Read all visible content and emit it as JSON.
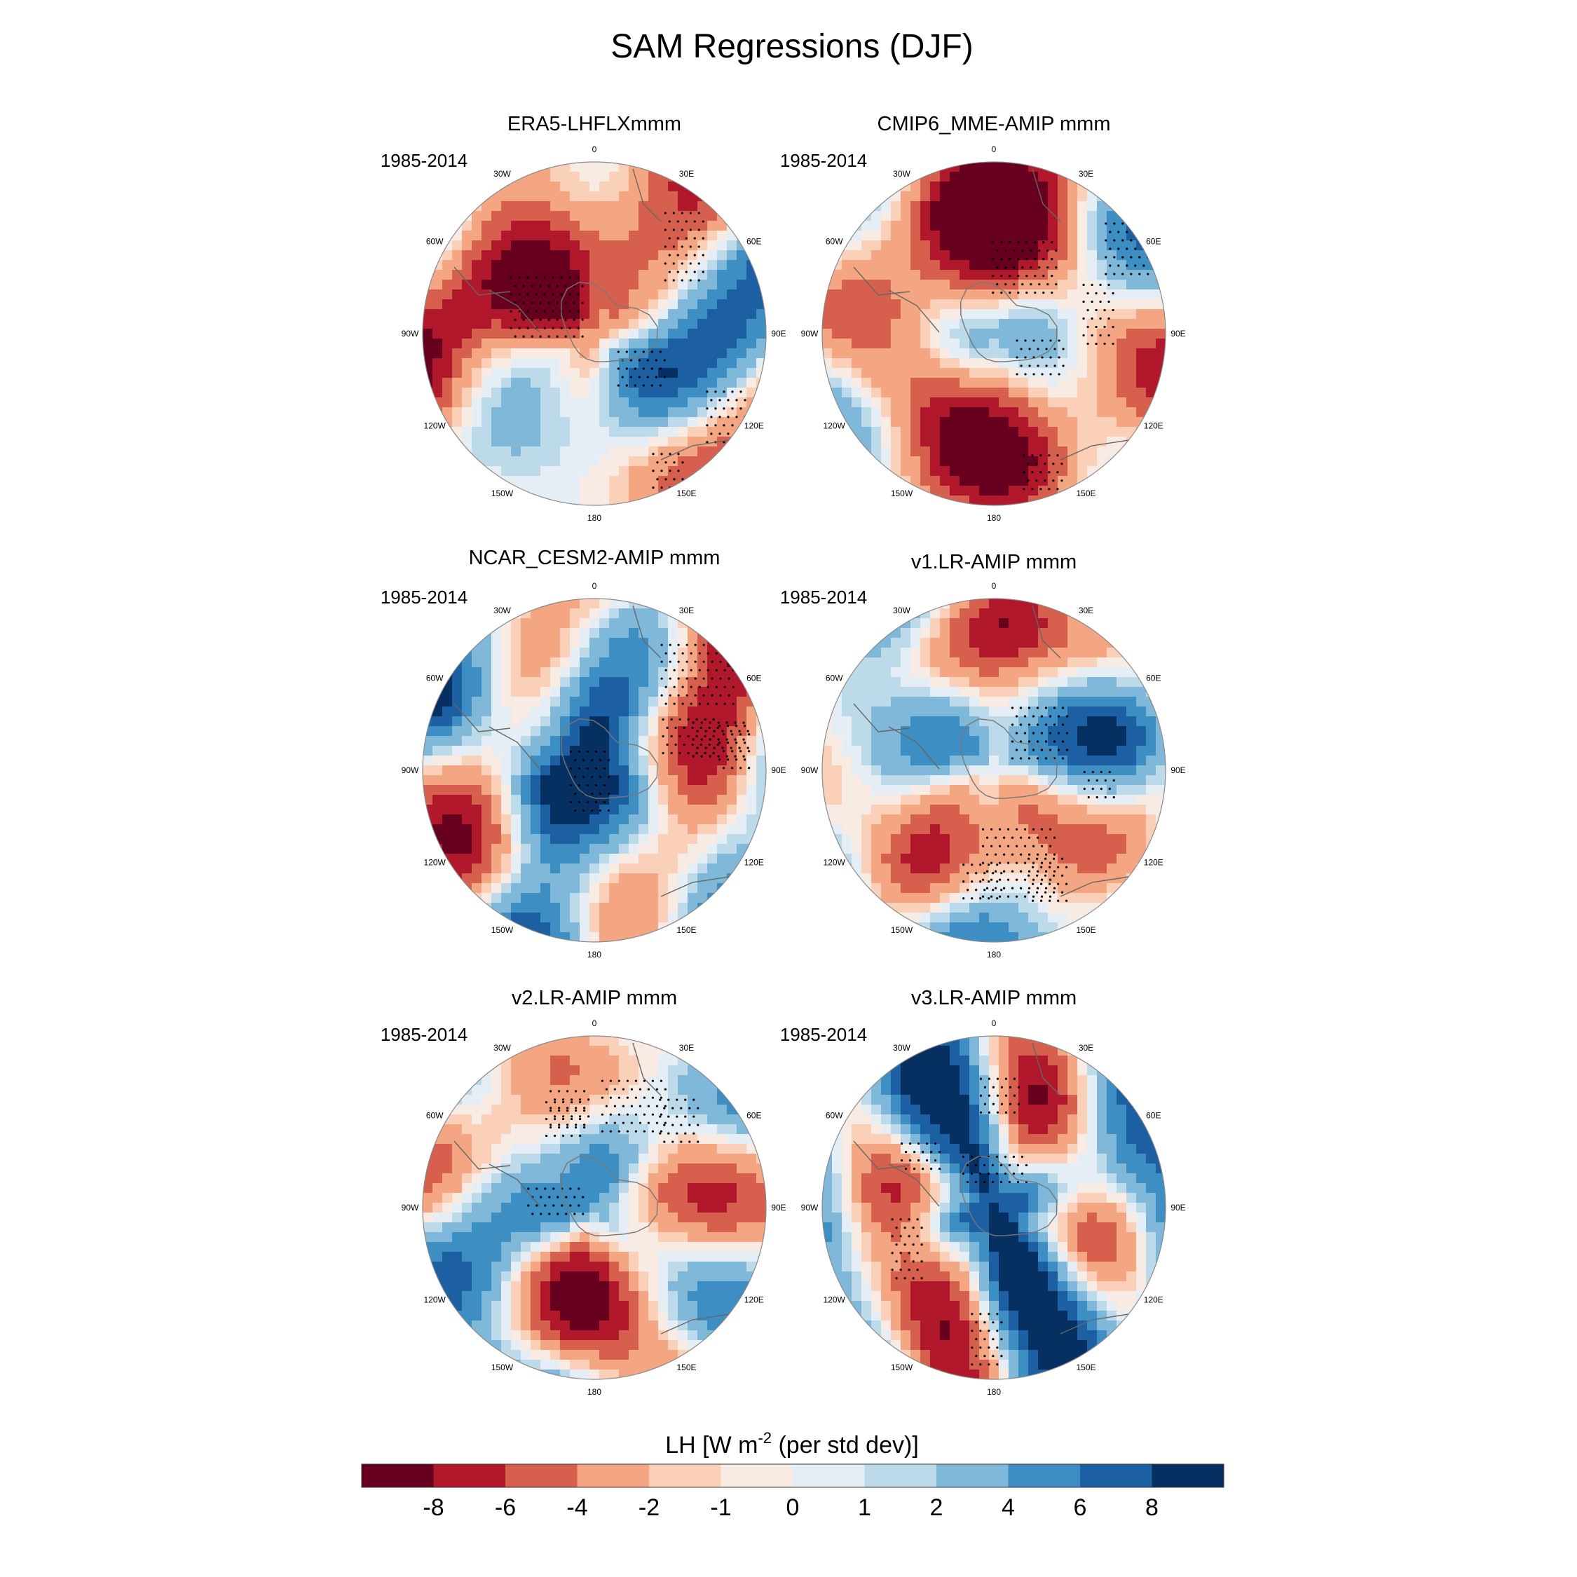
{
  "figure": {
    "title": "SAM Regressions (DJF)"
  },
  "panels": [
    {
      "id": "era5",
      "title": "ERA5-LHFLXmmm",
      "period": "1985-2014",
      "seed": 11
    },
    {
      "id": "cmip6",
      "title": "CMIP6_MME-AMIP  mmm",
      "period": "1985-2014",
      "seed": 23
    },
    {
      "id": "cesm2",
      "title": "NCAR_CESM2-AMIP  mmm",
      "period": "1985-2014",
      "seed": 37
    },
    {
      "id": "v1",
      "title": "v1.LR-AMIP  mmm",
      "period": "1985-2014",
      "seed": 41
    },
    {
      "id": "v2",
      "title": "v2.LR-AMIP  mmm",
      "period": "1985-2014",
      "seed": 53
    },
    {
      "id": "v3",
      "title": "v3.LR-AMIP  mmm",
      "period": "1985-2014",
      "seed": 67
    }
  ],
  "longitude_labels": [
    "0",
    "30E",
    "60E",
    "90E",
    "120E",
    "150E",
    "180",
    "150W",
    "120W",
    "90W",
    "60W",
    "30W"
  ],
  "colorbar": {
    "title_prefix": "LH [W m",
    "title_exponent": "-2",
    "title_suffix": " (per std dev)]",
    "tick_labels": [
      "-8",
      "-6",
      "-4",
      "-2",
      "-1",
      "0",
      "1",
      "2",
      "4",
      "6",
      "8"
    ],
    "levels": [
      -8,
      -6,
      -4,
      -2,
      -1,
      0,
      1,
      2,
      4,
      6,
      8
    ],
    "colors": [
      "#67001f",
      "#b2182b",
      "#d6604d",
      "#f4a582",
      "#fbd0b9",
      "#f7ebe4",
      "#e5eef4",
      "#bcdaea",
      "#7fb8d8",
      "#3d8ec3",
      "#1c5fa3",
      "#053061"
    ]
  },
  "chart_data": {
    "type": "map",
    "projection": "south polar stereographic",
    "variable": "LH regression on SAM index",
    "units": "W m-2 (per std dev)",
    "season": "DJF",
    "period": "1985-2014",
    "contour_levels": [
      -8,
      -6,
      -4,
      -2,
      -1,
      0,
      1,
      2,
      4,
      6,
      8
    ],
    "stippling": "significant regions",
    "panels": [
      "ERA5-LHFLXmmm",
      "CMIP6_MME-AMIP  mmm",
      "NCAR_CESM2-AMIP  mmm",
      "v1.LR-AMIP  mmm",
      "v2.LR-AMIP  mmm",
      "v3.LR-AMIP  mmm"
    ]
  }
}
